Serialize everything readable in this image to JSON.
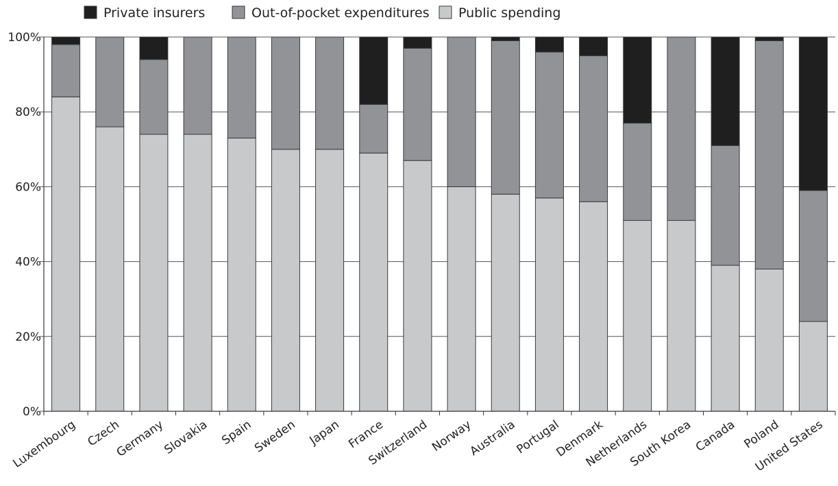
{
  "chart_data": {
    "type": "bar",
    "stacked": true,
    "categories": [
      "Luxembourg",
      "Czech",
      "Germany",
      "Slovakia",
      "Spain",
      "Sweden",
      "Japan",
      "France",
      "Switzerland",
      "Norway",
      "Australia",
      "Portugal",
      "Denmark",
      "Netherlands",
      "South Korea",
      "Canada",
      "Poland",
      "United States"
    ],
    "series": [
      {
        "name": "Public spending",
        "color": "#c8c9cb",
        "values": [
          84,
          76,
          74,
          74,
          73,
          70,
          70,
          69,
          67,
          60,
          58,
          57,
          56,
          51,
          51,
          39,
          38,
          24
        ]
      },
      {
        "name": "Out-of-pocket expenditures",
        "color": "#929396",
        "values": [
          14,
          24,
          20,
          26,
          27,
          30,
          30,
          13,
          30,
          40,
          41,
          39,
          39,
          26,
          49,
          32,
          61,
          35
        ]
      },
      {
        "name": "Private insurers",
        "color": "#1f1f1f",
        "values": [
          2,
          0,
          6,
          0,
          0,
          0,
          0,
          18,
          3,
          0,
          1,
          4,
          5,
          23,
          0,
          29,
          1,
          41
        ]
      }
    ],
    "legend_order": [
      "Private insurers",
      "Out-of-pocket expenditures",
      "Public spending"
    ],
    "legend_placement": "top-left",
    "yticks": [
      "0%",
      "20%",
      "40%",
      "60%",
      "80%",
      "100%"
    ],
    "ylim": [
      0,
      100
    ],
    "grid": true,
    "title": "",
    "xlabel": "",
    "ylabel": ""
  }
}
